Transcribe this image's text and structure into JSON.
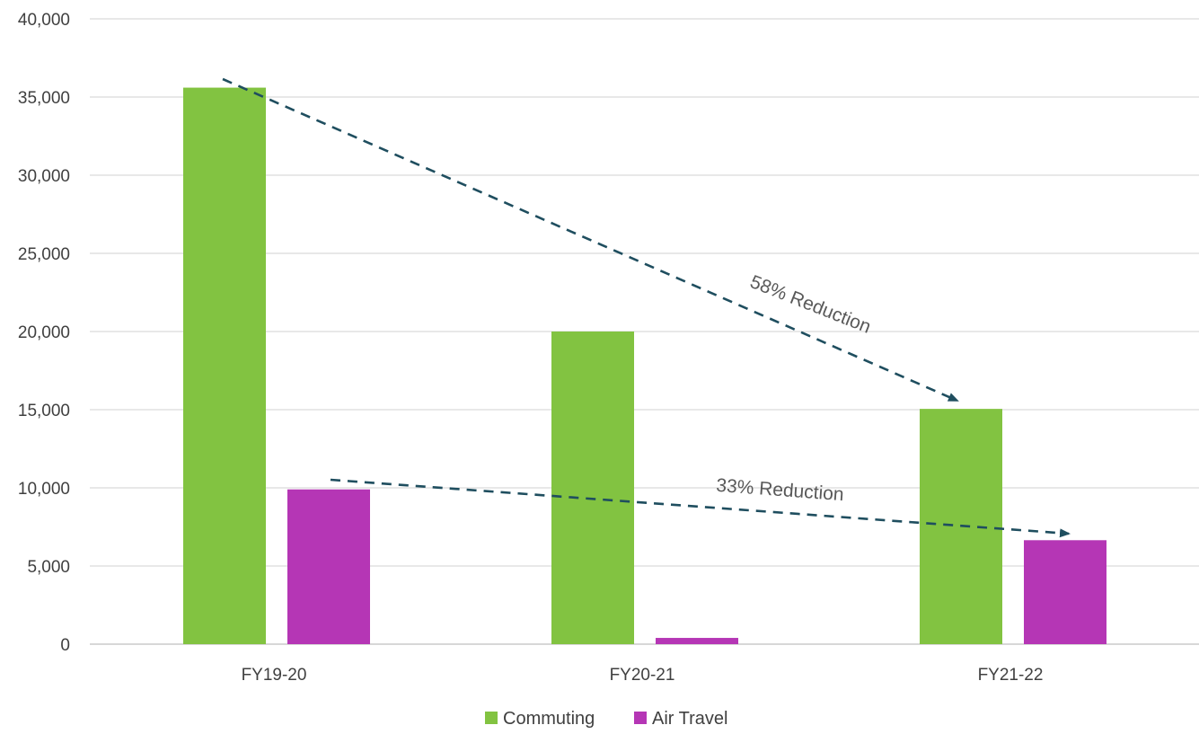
{
  "chart_data": {
    "type": "bar",
    "categories": [
      "FY19-20",
      "FY20-21",
      "FY21-22"
    ],
    "series": [
      {
        "name": "Commuting",
        "color": "#82c341",
        "values": [
          35600,
          20000,
          15050
        ]
      },
      {
        "name": "Air Travel",
        "color": "#b536b5",
        "values": [
          9900,
          400,
          6650
        ]
      }
    ],
    "y_ticks": [
      0,
      5000,
      10000,
      15000,
      20000,
      25000,
      30000,
      35000,
      40000
    ],
    "y_tick_labels": [
      "0",
      "5,000",
      "10,000",
      "15,000",
      "20,000",
      "25,000",
      "30,000",
      "35,000",
      "40,000"
    ],
    "ylim": [
      0,
      40000
    ],
    "grid": true,
    "legend_position": "bottom-center",
    "annotations": [
      {
        "text": "58% Reduction",
        "series": "Commuting",
        "from": "FY19-20",
        "to": "FY21-22",
        "style": "dashed-arrow"
      },
      {
        "text": "33% Reduction",
        "series": "Air Travel",
        "from": "FY19-20",
        "to": "FY21-22",
        "style": "dashed-arrow"
      }
    ],
    "gridline_color": "#d9d9d9",
    "annotation_color": "#1f4e5f"
  }
}
